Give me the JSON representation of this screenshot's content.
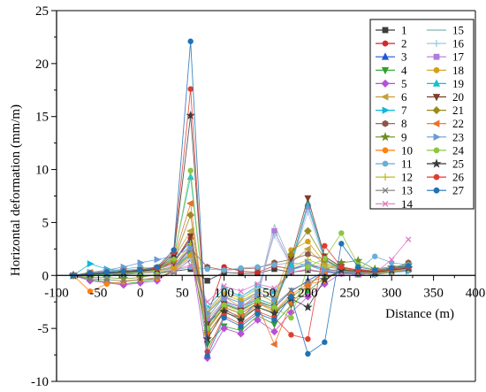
{
  "chart_data": {
    "type": "line",
    "title": "",
    "xlabel": "Distance (m)",
    "ylabel": "Horizontal deformation (mm/m)",
    "xlim": [
      -100,
      400
    ],
    "ylim": [
      -10,
      25
    ],
    "x_ticks": [
      "-100",
      "-50",
      "0",
      "50",
      "100",
      "150",
      "200",
      "250",
      "300",
      "350",
      "400"
    ],
    "y_ticks": [
      "-10",
      "-5",
      "0",
      "5",
      "10",
      "15",
      "20",
      "25"
    ],
    "grid": false,
    "legend_position": "top-right",
    "x": [
      -80,
      -60,
      -40,
      -20,
      0,
      20,
      40,
      60,
      80,
      100,
      120,
      140,
      160,
      180,
      200,
      220,
      240,
      260,
      280,
      300,
      320
    ],
    "series": [
      {
        "name": "1",
        "color": "#3c3c3c",
        "marker": "square",
        "values": [
          0,
          0.1,
          0.1,
          0.1,
          0.2,
          0.3,
          0.4,
          0.6,
          -0.5,
          0.3,
          0.2,
          0.2,
          0.6,
          0.3,
          0.5,
          0.3,
          0.2,
          0.1,
          0.2,
          0.5,
          0.6
        ]
      },
      {
        "name": "2",
        "color": "#d62728",
        "marker": "circle",
        "values": [
          0,
          0.2,
          0.2,
          0.3,
          0.4,
          0.6,
          1.2,
          3.5,
          -3.8,
          0.8,
          0.4,
          0.3,
          0.9,
          0.6,
          1.0,
          0.6,
          0.4,
          0.2,
          0.3,
          0.7,
          0.9
        ]
      },
      {
        "name": "3",
        "color": "#1f57d6",
        "marker": "triangle",
        "values": [
          0,
          0.2,
          0.3,
          0.3,
          0.5,
          0.7,
          1.4,
          3.2,
          -4.5,
          -3.2,
          -4.0,
          -2.5,
          -3.0,
          -1.5,
          -0.5,
          0.4,
          0.2,
          0.1,
          0.2,
          0.5,
          0.7
        ]
      },
      {
        "name": "4",
        "color": "#2ca02c",
        "marker": "triangle-down",
        "values": [
          0,
          -0.4,
          -0.6,
          -0.8,
          -0.6,
          -0.3,
          0.5,
          2.8,
          -6.5,
          -4.8,
          -5.2,
          -3.8,
          -4.6,
          -2.8,
          -1.5,
          -0.2,
          0.4,
          0.2,
          0.1,
          0.4,
          0.6
        ]
      },
      {
        "name": "5",
        "color": "#b84fd6",
        "marker": "diamond",
        "values": [
          0,
          -0.5,
          -0.7,
          -0.9,
          -0.7,
          -0.5,
          0.6,
          2.3,
          -7.8,
          -5.0,
          -5.5,
          -4.2,
          -5.3,
          -3.5,
          -2.0,
          -0.8,
          0.2,
          0.3,
          0.2,
          0.4,
          0.5
        ]
      },
      {
        "name": "6",
        "color": "#c2a13a",
        "marker": "triangle-left",
        "values": [
          0,
          0.3,
          0.4,
          0.5,
          0.6,
          0.8,
          1.6,
          4.2,
          -4.0,
          -2.0,
          -3.0,
          -1.8,
          -2.5,
          1.2,
          2.5,
          1.0,
          0.8,
          0.5,
          0.3,
          0.6,
          0.8
        ]
      },
      {
        "name": "7",
        "color": "#10b8d8",
        "marker": "triangle-right",
        "values": [
          0,
          1.1,
          0.6,
          0.4,
          0.3,
          0.5,
          0.8,
          2.0,
          -3.0,
          -1.2,
          -2.0,
          -1.0,
          -1.5,
          0.5,
          1.0,
          0.4,
          0.3,
          0.2,
          0.1,
          0.3,
          0.4
        ]
      },
      {
        "name": "8",
        "color": "#8c564b",
        "marker": "hexagon",
        "values": [
          0,
          0.2,
          0.2,
          0.3,
          0.4,
          0.5,
          0.8,
          2.5,
          0.8,
          0.5,
          0.6,
          0.7,
          1.2,
          1.5,
          2.0,
          1.5,
          0.5,
          0.6,
          0.4,
          0.6,
          1.2
        ]
      },
      {
        "name": "9",
        "color": "#6b8e23",
        "marker": "star",
        "values": [
          0,
          -0.2,
          -0.2,
          -0.3,
          -0.2,
          0.1,
          0.5,
          2.0,
          -5.5,
          -3.5,
          -4.0,
          -3.0,
          -3.5,
          -2.0,
          -1.0,
          0.5,
          1.2,
          1.4,
          0.6,
          0.8,
          1.0
        ]
      },
      {
        "name": "10",
        "color": "#ff7f0e",
        "marker": "circle",
        "values": [
          0,
          -1.5,
          -0.8,
          -0.6,
          -0.4,
          -0.3,
          0.4,
          1.8,
          -5.0,
          -3.0,
          -3.6,
          -2.6,
          -3.4,
          -1.8,
          -0.8,
          -0.5,
          0.6,
          0.4,
          0.3,
          0.6,
          0.9
        ]
      },
      {
        "name": "11",
        "color": "#6baed6",
        "marker": "circle",
        "values": [
          0,
          0.2,
          0.4,
          0.6,
          0.8,
          0.6,
          0.5,
          0.8,
          0.6,
          0.5,
          0.7,
          0.8,
          1.0,
          1.2,
          1.0,
          0.8,
          0.6,
          0.5,
          1.8,
          1.2,
          1.0
        ]
      },
      {
        "name": "12",
        "color": "#bcbd22",
        "marker": "plus",
        "values": [
          0,
          0.1,
          0.2,
          0.2,
          0.3,
          0.4,
          0.9,
          3.0,
          -3.5,
          -1.5,
          -2.2,
          -1.3,
          -2.0,
          0.8,
          1.5,
          0.9,
          0.6,
          0.4,
          0.3,
          0.5,
          0.7
        ]
      },
      {
        "name": "13",
        "color": "#7f7f7f",
        "marker": "x",
        "values": [
          0,
          -0.3,
          -0.4,
          -0.5,
          -0.4,
          -0.2,
          0.3,
          1.5,
          -4.5,
          -2.5,
          -3.0,
          -2.2,
          -2.8,
          -1.4,
          -0.6,
          -0.2,
          0.3,
          0.2,
          0.1,
          0.3,
          0.5
        ]
      },
      {
        "name": "14",
        "color": "#e377c2",
        "marker": "x",
        "values": [
          0,
          0.1,
          0.1,
          0.2,
          0.2,
          0.3,
          0.5,
          1.0,
          -2.5,
          -1.0,
          -1.5,
          -0.8,
          -1.2,
          0.3,
          0.6,
          0.3,
          0.2,
          0.1,
          0.2,
          1.5,
          3.4
        ]
      },
      {
        "name": "15",
        "color": "#7fb8b0",
        "marker": "none",
        "values": [
          0,
          0.1,
          0.2,
          0.2,
          0.3,
          0.4,
          0.8,
          2.2,
          -4.0,
          -2.0,
          -2.6,
          -1.8,
          4.8,
          1.2,
          6.8,
          1.8,
          0.7,
          0.5,
          0.3,
          0.5,
          0.8
        ]
      },
      {
        "name": "16",
        "color": "#9ecae1",
        "marker": "plus",
        "values": [
          0,
          0.1,
          0.1,
          0.2,
          0.2,
          0.3,
          0.6,
          1.6,
          -3.2,
          -1.6,
          -2.0,
          -1.2,
          3.8,
          0.9,
          6.0,
          1.4,
          0.5,
          0.4,
          0.2,
          0.4,
          0.6
        ]
      },
      {
        "name": "17",
        "color": "#b07cd8",
        "marker": "square",
        "values": [
          0,
          0.2,
          0.3,
          0.4,
          0.5,
          0.6,
          1.0,
          2.6,
          -4.2,
          -2.4,
          -3.0,
          -2.0,
          4.2,
          1.0,
          6.5,
          1.6,
          0.6,
          0.4,
          0.3,
          0.5,
          0.7
        ]
      },
      {
        "name": "18",
        "color": "#d4a017",
        "marker": "circle",
        "values": [
          0,
          0.1,
          0.2,
          0.2,
          0.3,
          0.4,
          0.7,
          1.9,
          -3.6,
          -1.8,
          -2.4,
          -1.6,
          -2.2,
          2.4,
          3.2,
          1.2,
          0.5,
          0.3,
          0.2,
          0.4,
          0.6
        ]
      },
      {
        "name": "19",
        "color": "#17becf",
        "marker": "triangle",
        "values": [
          0,
          0.1,
          0.1,
          0.2,
          0.3,
          0.5,
          1.8,
          9.3,
          -4.8,
          -2.6,
          -3.2,
          -2.2,
          -2.8,
          1.0,
          6.8,
          1.5,
          0.6,
          0.4,
          0.3,
          0.5,
          0.7
        ]
      },
      {
        "name": "20",
        "color": "#7b3f2a",
        "marker": "triangle-down",
        "values": [
          0,
          0.2,
          0.3,
          0.4,
          0.5,
          0.7,
          1.2,
          3.7,
          -4.6,
          -2.7,
          -3.3,
          -2.4,
          -3.0,
          1.6,
          7.3,
          1.8,
          0.8,
          0.5,
          0.4,
          0.6,
          0.8
        ]
      },
      {
        "name": "21",
        "color": "#9a8a1a",
        "marker": "diamond",
        "values": [
          0,
          0.1,
          0.2,
          0.3,
          0.4,
          0.6,
          1.4,
          5.7,
          -5.2,
          -3.0,
          -3.6,
          -2.6,
          -3.2,
          2.0,
          4.2,
          1.5,
          0.7,
          0.5,
          0.3,
          0.6,
          0.8
        ]
      },
      {
        "name": "22",
        "color": "#e8702a",
        "marker": "triangle-left",
        "values": [
          0,
          0.2,
          0.3,
          0.4,
          0.5,
          0.7,
          1.6,
          6.8,
          -5.6,
          -3.3,
          -3.9,
          -2.8,
          -6.5,
          -2.6,
          -1.0,
          0.4,
          0.6,
          0.4,
          0.3,
          0.5,
          0.7
        ]
      },
      {
        "name": "23",
        "color": "#6b9bd1",
        "marker": "triangle-right",
        "values": [
          0,
          0.3,
          0.5,
          0.8,
          1.2,
          1.5,
          1.8,
          2.6,
          -3.6,
          -2.0,
          -2.6,
          -1.6,
          -2.2,
          0.6,
          1.2,
          0.5,
          0.4,
          0.3,
          0.4,
          0.6,
          0.8
        ]
      },
      {
        "name": "24",
        "color": "#8dc63f",
        "marker": "circle",
        "values": [
          0,
          0.1,
          0.2,
          0.2,
          0.3,
          0.5,
          1.6,
          9.9,
          -5.0,
          -2.8,
          -3.4,
          -2.4,
          -3.0,
          -4.0,
          0.8,
          1.6,
          4.0,
          1.0,
          0.5,
          0.7,
          0.9
        ]
      },
      {
        "name": "25",
        "color": "#3a3a3a",
        "marker": "star",
        "values": [
          0,
          0.1,
          0.2,
          0.3,
          0.4,
          0.6,
          2.0,
          15.1,
          -6.0,
          -3.4,
          -4.2,
          -3.0,
          -3.6,
          -2.2,
          -3.0,
          -0.4,
          0.5,
          0.4,
          0.3,
          0.5,
          0.7
        ]
      },
      {
        "name": "26",
        "color": "#e03c31",
        "marker": "circle",
        "values": [
          0,
          0.2,
          0.3,
          0.4,
          0.5,
          0.7,
          2.2,
          17.6,
          -7.2,
          -3.8,
          -4.6,
          -3.4,
          -4.0,
          -5.6,
          -6.0,
          2.8,
          0.8,
          0.5,
          0.4,
          0.6,
          0.8
        ]
      },
      {
        "name": "27",
        "color": "#2171b5",
        "marker": "circle",
        "values": [
          0,
          0.2,
          0.3,
          0.4,
          0.5,
          0.8,
          2.4,
          22.1,
          -7.6,
          -4.0,
          -4.8,
          -3.6,
          -4.2,
          -2.0,
          -7.4,
          -6.3,
          3.0,
          0.8,
          0.5,
          0.7,
          0.9
        ]
      }
    ]
  }
}
